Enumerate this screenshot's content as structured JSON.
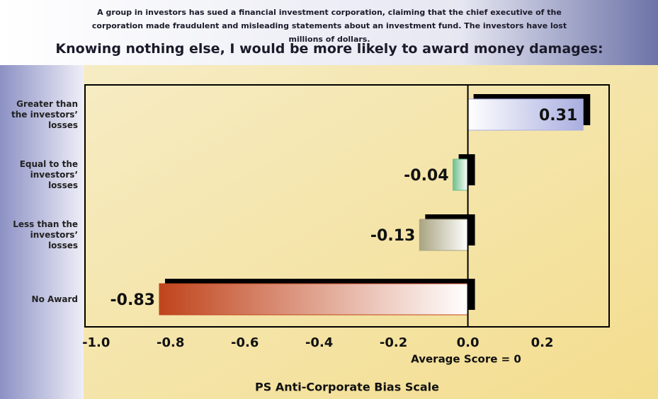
{
  "chart_data": {
    "type": "hbar",
    "subtitle": "A group in investors has sued a financial investment corporation, claiming that the chief executive of the corporation made fraudulent and misleading statements about an investment fund. The investors have lost millions of dollars.",
    "title": "Knowing nothing else, I would be more likely to award money damages:",
    "categories": [
      "Greater than the investors’ losses",
      "Equal to the investors’ losses",
      "Less than the investors’ losses",
      "No Award"
    ],
    "values": [
      0.31,
      -0.04,
      -0.13,
      -0.83
    ],
    "colors": [
      "#a9aee0",
      "#6fbf8c",
      "#a9a482",
      "#c0441c"
    ],
    "xlim": [
      -1.03,
      0.38
    ],
    "xticks": [
      {
        "value": -1.0,
        "label": "-1.0"
      },
      -0.8,
      -0.6,
      -0.4,
      -0.2,
      {
        "value": 0,
        "label": "0.0"
      },
      0.2
    ],
    "annotation": "Average Score = 0",
    "xlabel": "PS Anti-Corporate Bias Scale",
    "grid": false
  }
}
